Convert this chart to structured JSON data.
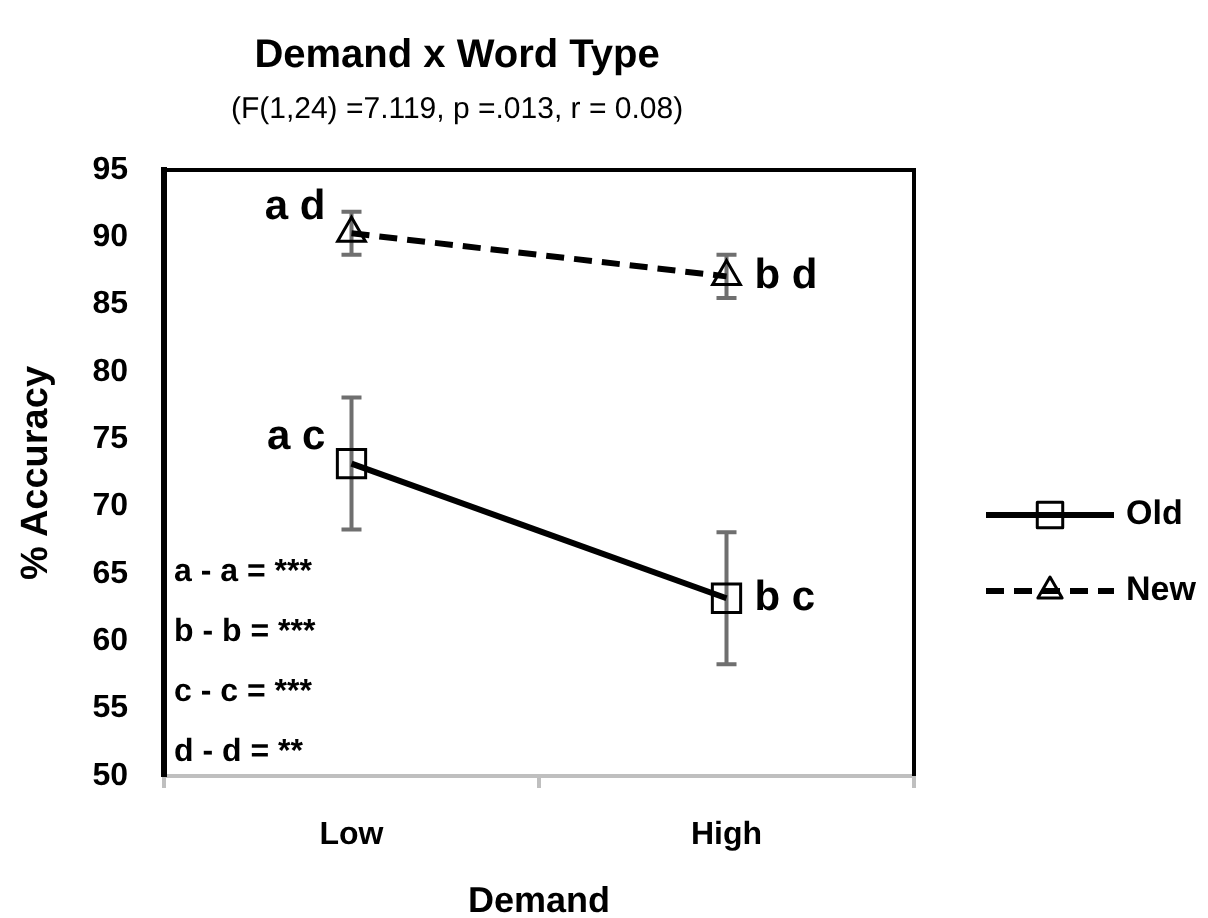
{
  "chart_data": {
    "type": "line",
    "title": "Demand x Word Type",
    "subtitle": "(F(1,24) =7.119, p =.013, r = 0.08)",
    "xlabel": "Demand",
    "ylabel": "% Accuracy",
    "categories": [
      "Low",
      "High"
    ],
    "series": [
      {
        "name": "Old",
        "color": "#000000",
        "values": [
          73.2,
          63.2
        ],
        "errors": [
          4.9,
          4.9
        ],
        "marker": "square",
        "line_style": "solid"
      },
      {
        "name": "New",
        "color": "#000000",
        "values": [
          90.3,
          87.1
        ],
        "errors": [
          1.6,
          1.6
        ],
        "marker": "triangle",
        "line_style": "dashed"
      }
    ],
    "ylim": [
      50,
      95
    ],
    "yticks": [
      50,
      55,
      60,
      65,
      70,
      75,
      80,
      85,
      90,
      95
    ],
    "legend": "right",
    "annotations": [
      {
        "text": "a d",
        "x": "Low",
        "y": 90.3
      },
      {
        "text": "b d",
        "x": "High",
        "y": 87.1
      },
      {
        "text": "a c",
        "x": "Low",
        "y": 73.2
      },
      {
        "text": "b c",
        "x": "High",
        "y": 63.2
      },
      "a - a = ***",
      "b - b = ***",
      "c - c = ***",
      "d - d = **"
    ]
  }
}
